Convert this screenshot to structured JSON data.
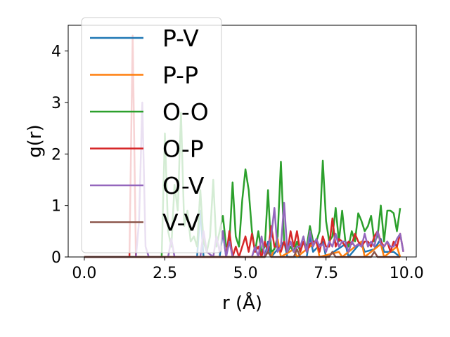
{
  "chart_data": {
    "type": "line",
    "xlabel": "r (Å)",
    "ylabel": "g(r)",
    "xlim": [
      -0.5,
      10.3
    ],
    "ylim": [
      0,
      4.5
    ],
    "xticks": [
      {
        "v": 0.0,
        "label": "0.0"
      },
      {
        "v": 2.5,
        "label": "2.5"
      },
      {
        "v": 5.0,
        "label": "5.0"
      },
      {
        "v": 7.5,
        "label": "7.5"
      },
      {
        "v": 10.0,
        "label": "10.0"
      }
    ],
    "yticks": [
      {
        "v": 0,
        "label": "0"
      },
      {
        "v": 1,
        "label": "1"
      },
      {
        "v": 2,
        "label": "2"
      },
      {
        "v": 3,
        "label": "3"
      },
      {
        "v": 4,
        "label": "4"
      }
    ],
    "grid": false,
    "legend_position": "upper-left",
    "series": [
      {
        "name": "P-V",
        "color": "#1f77b4",
        "points": [
          [
            0,
            0
          ],
          [
            3.5,
            0
          ],
          [
            3.6,
            0.9
          ],
          [
            3.7,
            0
          ],
          [
            4.2,
            0
          ],
          [
            4.3,
            0.5
          ],
          [
            4.4,
            0
          ],
          [
            5.6,
            0
          ],
          [
            5.7,
            0.3
          ],
          [
            5.8,
            0
          ],
          [
            6.2,
            0.3
          ],
          [
            6.3,
            0
          ],
          [
            6.9,
            0
          ],
          [
            7.0,
            0.4
          ],
          [
            7.1,
            0.1
          ],
          [
            7.4,
            0.3
          ],
          [
            7.5,
            0
          ],
          [
            8.1,
            0.25
          ],
          [
            8.2,
            0
          ],
          [
            8.6,
            0.3
          ],
          [
            8.7,
            0.1
          ],
          [
            9.0,
            0.15
          ],
          [
            9.2,
            0.35
          ],
          [
            9.3,
            0.1
          ],
          [
            9.6,
            0.1
          ],
          [
            9.8,
            0
          ]
        ]
      },
      {
        "name": "P-P",
        "color": "#ff7f0e",
        "points": [
          [
            0,
            0
          ],
          [
            5.6,
            0
          ],
          [
            5.7,
            0.1
          ],
          [
            5.8,
            0
          ],
          [
            6.0,
            0.35
          ],
          [
            6.1,
            0
          ],
          [
            6.5,
            0.15
          ],
          [
            6.6,
            0
          ],
          [
            7.2,
            0.3
          ],
          [
            7.3,
            0
          ],
          [
            7.9,
            0.1
          ],
          [
            8.0,
            0
          ],
          [
            8.6,
            0.3
          ],
          [
            8.7,
            0
          ],
          [
            9.2,
            0.25
          ],
          [
            9.3,
            0
          ],
          [
            9.7,
            0.2
          ],
          [
            9.8,
            0
          ]
        ]
      },
      {
        "name": "O-O",
        "color": "#2ca02c",
        "points": [
          [
            0,
            0
          ],
          [
            2.4,
            0
          ],
          [
            2.5,
            2.4
          ],
          [
            2.6,
            0.5
          ],
          [
            2.7,
            0.2
          ],
          [
            2.8,
            1.4
          ],
          [
            2.9,
            0.9
          ],
          [
            3.0,
            2.8
          ],
          [
            3.1,
            0.6
          ],
          [
            3.2,
            0.9
          ],
          [
            3.3,
            0.3
          ],
          [
            3.4,
            0.4
          ],
          [
            3.5,
            0.2
          ],
          [
            3.6,
            1.3
          ],
          [
            3.7,
            0.3
          ],
          [
            3.8,
            0.1
          ],
          [
            3.9,
            0.4
          ],
          [
            4.0,
            1.5
          ],
          [
            4.1,
            0.2
          ],
          [
            4.2,
            0.5
          ],
          [
            4.3,
            0.8
          ],
          [
            4.4,
            0.2
          ],
          [
            4.5,
            0.25
          ],
          [
            4.6,
            1.45
          ],
          [
            4.7,
            0.4
          ],
          [
            4.8,
            0.2
          ],
          [
            4.9,
            1.1
          ],
          [
            5.0,
            1.7
          ],
          [
            5.1,
            1.3
          ],
          [
            5.2,
            0.5
          ],
          [
            5.3,
            0.1
          ],
          [
            5.4,
            0.5
          ],
          [
            5.5,
            0.1
          ],
          [
            5.6,
            0.2
          ],
          [
            5.7,
            1.3
          ],
          [
            5.8,
            0.1
          ],
          [
            5.9,
            0.15
          ],
          [
            6.0,
            0.4
          ],
          [
            6.1,
            1.85
          ],
          [
            6.2,
            0.3
          ],
          [
            6.3,
            0.1
          ],
          [
            6.4,
            0.2
          ],
          [
            6.5,
            0.1
          ],
          [
            6.6,
            0.3
          ],
          [
            6.7,
            0.1
          ],
          [
            6.8,
            0.3
          ],
          [
            6.9,
            0.2
          ],
          [
            7.0,
            0.6
          ],
          [
            7.1,
            0.3
          ],
          [
            7.2,
            0.3
          ],
          [
            7.3,
            0.5
          ],
          [
            7.4,
            1.87
          ],
          [
            7.5,
            0.7
          ],
          [
            7.6,
            0.3
          ],
          [
            7.7,
            0.4
          ],
          [
            7.8,
            0.95
          ],
          [
            7.9,
            0.3
          ],
          [
            8.0,
            0.9
          ],
          [
            8.1,
            0.3
          ],
          [
            8.2,
            0.2
          ],
          [
            8.3,
            0.5
          ],
          [
            8.4,
            0.3
          ],
          [
            8.5,
            0.85
          ],
          [
            8.6,
            0.7
          ],
          [
            8.7,
            0.5
          ],
          [
            8.8,
            0.6
          ],
          [
            8.9,
            0.8
          ],
          [
            9.0,
            0.3
          ],
          [
            9.1,
            0.4
          ],
          [
            9.2,
            1.0
          ],
          [
            9.3,
            0.3
          ],
          [
            9.4,
            0.9
          ],
          [
            9.5,
            0.9
          ],
          [
            9.6,
            0.85
          ],
          [
            9.7,
            0.5
          ],
          [
            9.8,
            0.95
          ]
        ]
      },
      {
        "name": "O-P",
        "color": "#d62728",
        "points": [
          [
            0,
            0
          ],
          [
            1.4,
            0
          ],
          [
            1.5,
            4.3
          ],
          [
            1.6,
            0
          ],
          [
            4.4,
            0
          ],
          [
            4.5,
            0.5
          ],
          [
            4.6,
            0
          ],
          [
            4.7,
            0.2
          ],
          [
            4.8,
            0
          ],
          [
            4.9,
            0.2
          ],
          [
            5.0,
            0.4
          ],
          [
            5.1,
            0.1
          ],
          [
            5.2,
            0.45
          ],
          [
            5.3,
            0.1
          ],
          [
            5.4,
            0.2
          ],
          [
            5.5,
            0
          ],
          [
            5.6,
            0.3
          ],
          [
            5.7,
            0.1
          ],
          [
            5.8,
            0.6
          ],
          [
            5.9,
            0.2
          ],
          [
            6.0,
            0.2
          ],
          [
            6.1,
            0.1
          ],
          [
            6.2,
            0.3
          ],
          [
            6.3,
            0.1
          ],
          [
            6.4,
            0.5
          ],
          [
            6.5,
            0.2
          ],
          [
            6.6,
            0.5
          ],
          [
            6.7,
            0.1
          ],
          [
            6.8,
            0.3
          ],
          [
            6.9,
            0.1
          ],
          [
            7.0,
            0.25
          ],
          [
            7.1,
            0.3
          ],
          [
            7.2,
            0.3
          ],
          [
            7.3,
            0.1
          ],
          [
            7.4,
            0.4
          ],
          [
            7.5,
            0.2
          ],
          [
            7.6,
            0.2
          ],
          [
            7.7,
            0.75
          ],
          [
            7.8,
            0.2
          ],
          [
            7.9,
            0.35
          ],
          [
            8.0,
            0.3
          ],
          [
            8.1,
            0.2
          ],
          [
            8.2,
            0.3
          ],
          [
            8.3,
            0.25
          ],
          [
            8.4,
            0.45
          ],
          [
            8.5,
            0.3
          ],
          [
            8.6,
            0.2
          ],
          [
            8.7,
            0.3
          ],
          [
            8.8,
            0.3
          ],
          [
            8.9,
            0.2
          ],
          [
            9.0,
            0.4
          ],
          [
            9.1,
            0.5
          ],
          [
            9.2,
            0.3
          ],
          [
            9.3,
            0.2
          ],
          [
            9.4,
            0.3
          ],
          [
            9.5,
            0.1
          ],
          [
            9.6,
            0.3
          ],
          [
            9.7,
            0.2
          ],
          [
            9.8,
            0.45
          ],
          [
            9.9,
            0.1
          ]
        ]
      },
      {
        "name": "O-V",
        "color": "#9467bd",
        "points": [
          [
            0,
            0
          ],
          [
            1.6,
            0
          ],
          [
            1.7,
            0.7
          ],
          [
            1.8,
            3.0
          ],
          [
            1.9,
            0.2
          ],
          [
            2.0,
            0
          ],
          [
            2.6,
            0
          ],
          [
            2.7,
            0.35
          ],
          [
            2.8,
            0
          ],
          [
            3.6,
            0
          ],
          [
            3.7,
            0.5
          ],
          [
            3.8,
            0.1
          ],
          [
            4.0,
            0
          ],
          [
            4.1,
            0.4
          ],
          [
            4.2,
            0.1
          ],
          [
            4.3,
            0.5
          ],
          [
            4.4,
            0
          ],
          [
            4.5,
            0.3
          ],
          [
            4.6,
            0
          ],
          [
            5.2,
            0
          ],
          [
            5.3,
            0.2
          ],
          [
            5.4,
            0
          ],
          [
            5.5,
            0.4
          ],
          [
            5.6,
            0
          ],
          [
            5.8,
            0.4
          ],
          [
            5.9,
            0.95
          ],
          [
            6.0,
            0.1
          ],
          [
            6.1,
            0.2
          ],
          [
            6.2,
            1.05
          ],
          [
            6.3,
            0.1
          ],
          [
            6.4,
            0.3
          ],
          [
            6.5,
            0.1
          ],
          [
            6.6,
            0.2
          ],
          [
            6.7,
            0.2
          ],
          [
            6.8,
            0.4
          ],
          [
            6.9,
            0.1
          ],
          [
            7.0,
            0.5
          ],
          [
            7.1,
            0.2
          ],
          [
            7.2,
            0.35
          ],
          [
            7.3,
            0.2
          ],
          [
            7.4,
            0.25
          ],
          [
            7.5,
            0.1
          ],
          [
            7.6,
            0.3
          ],
          [
            7.7,
            0.2
          ],
          [
            7.8,
            0.45
          ],
          [
            7.9,
            0.2
          ],
          [
            8.0,
            0.3
          ],
          [
            8.1,
            0.3
          ],
          [
            8.2,
            0.1
          ],
          [
            8.3,
            0.3
          ],
          [
            8.4,
            0.2
          ],
          [
            8.5,
            0.25
          ],
          [
            8.6,
            0.2
          ],
          [
            8.7,
            0.45
          ],
          [
            8.8,
            0.2
          ],
          [
            8.9,
            0.3
          ],
          [
            9.0,
            0.2
          ],
          [
            9.1,
            0.5
          ],
          [
            9.2,
            0.25
          ],
          [
            9.3,
            0.2
          ],
          [
            9.4,
            0.3
          ],
          [
            9.5,
            0.2
          ],
          [
            9.6,
            0.2
          ],
          [
            9.7,
            0.35
          ],
          [
            9.8,
            0.45
          ],
          [
            9.9,
            0.1
          ]
        ]
      },
      {
        "name": "V-V",
        "color": "#8c564b",
        "points": [
          [
            0,
            0
          ],
          [
            5.6,
            0
          ],
          [
            5.7,
            0.1
          ],
          [
            5.8,
            0
          ],
          [
            6.5,
            0
          ],
          [
            6.6,
            0.15
          ],
          [
            6.7,
            0
          ],
          [
            7.6,
            0
          ],
          [
            7.7,
            0.1
          ],
          [
            7.8,
            0
          ],
          [
            8.9,
            0
          ],
          [
            9.0,
            0.1
          ],
          [
            9.1,
            0
          ],
          [
            9.8,
            0
          ]
        ]
      }
    ]
  }
}
